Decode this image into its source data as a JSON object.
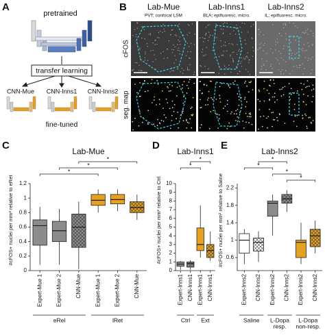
{
  "panels": {
    "A": {
      "letter": "A",
      "top_label": "pretrained",
      "middle_label": "transfer learning",
      "models": [
        "CNN-Mue",
        "CNN-Inns1",
        "CNN-Inns2"
      ],
      "bottom_label": "fine-tuned"
    },
    "B": {
      "letter": "B",
      "columns": [
        {
          "title": "Lab-Mue",
          "subtitle": "PVT; confocal LSM"
        },
        {
          "title": "Lab-Inns1",
          "subtitle": "BLA; epifluoresc. micro."
        },
        {
          "title": "Lab-Inns2",
          "subtitle": "IL; epifluoresc. micro."
        }
      ],
      "rows": [
        "cFOS",
        "seg. map"
      ]
    }
  },
  "chart_data": [
    {
      "type": "box",
      "letter": "C",
      "title": "Lab-Mue",
      "y_label": "#cFOS+ nuclei per mm² relative to eRet",
      "ylim": [
        0,
        1.2
      ],
      "yticks": [
        0,
        0.2,
        0.4,
        0.6,
        0.8,
        1.0,
        1.2
      ],
      "categories": [
        "Expert-Mue 1",
        "Expert-Mue 2",
        "CNN-Mue",
        "Expert-Mue 1",
        "Expert-Mue 2",
        "CNN-Mue"
      ],
      "colors": [
        "#8c8c8c",
        "#8c8c8c",
        "#8c8c8c",
        "#e6a11f",
        "#e6a11f",
        "#e6a11f"
      ],
      "hatch": [
        false,
        false,
        true,
        false,
        false,
        true
      ],
      "boxes": [
        {
          "min": 0.08,
          "q1": 0.35,
          "median": 0.62,
          "q3": 0.7,
          "max": 0.88
        },
        {
          "min": 0.08,
          "q1": 0.4,
          "median": 0.55,
          "q3": 0.68,
          "max": 0.85
        },
        {
          "min": 0.02,
          "q1": 0.32,
          "median": 0.6,
          "q3": 0.78,
          "max": 0.95
        },
        {
          "min": 0.8,
          "q1": 0.9,
          "median": 0.97,
          "q3": 1.05,
          "max": 1.12
        },
        {
          "min": 0.82,
          "q1": 0.92,
          "median": 0.98,
          "q3": 1.05,
          "max": 1.12
        },
        {
          "min": 0.7,
          "q1": 0.8,
          "median": 0.87,
          "q3": 0.95,
          "max": 1.05
        }
      ],
      "groups": [
        [
          "eRel"
        ],
        [
          "lRet"
        ]
      ],
      "significance": [
        {
          "between": [
            2,
            5
          ],
          "label": "*"
        },
        {
          "between": [
            1,
            4
          ],
          "label": "*"
        },
        {
          "between": [
            0,
            3
          ],
          "label": "*"
        }
      ]
    },
    {
      "type": "box",
      "letter": "D",
      "title": "Lab-Inns1",
      "y_label": "#cFOS+ nuclei per mm² relative to Ctrl",
      "ylim": [
        0,
        10
      ],
      "yticks": [
        0,
        1,
        2,
        3,
        4,
        5,
        6,
        7,
        8,
        9,
        10
      ],
      "categories": [
        "Expert-Inns1",
        "CNN-Inns1",
        "Expert-Inns1",
        "CNN-Inns1"
      ],
      "colors": [
        "#8c8c8c",
        "#8c8c8c",
        "#e6a11f",
        "#e6a11f"
      ],
      "hatch": [
        false,
        true,
        false,
        true
      ],
      "boxes": [
        {
          "min": 0.1,
          "q1": 0.5,
          "median": 0.75,
          "q3": 1.0,
          "max": 1.1
        },
        {
          "min": 0.1,
          "q1": 0.4,
          "median": 0.8,
          "q3": 1.0,
          "max": 1.2
        },
        {
          "min": 1.5,
          "q1": 2.3,
          "median": 3.0,
          "q3": 4.9,
          "max": 7.5
        },
        {
          "min": 1.1,
          "q1": 1.5,
          "median": 2.3,
          "q3": 3.0,
          "max": 4.5
        }
      ],
      "groups": [
        [
          "Ctrl"
        ],
        [
          "Ext"
        ]
      ],
      "significance": [
        {
          "between": [
            1,
            3
          ],
          "label": "*"
        },
        {
          "between": [
            0,
            2
          ],
          "label": "*"
        }
      ]
    },
    {
      "type": "box",
      "letter": "E",
      "title": "Lab-Inns2",
      "y_label": "#cFOS+ nuclei per mm² relative to Saline",
      "ylim": [
        0.3,
        2.3
      ],
      "yticks": [
        0.6,
        1.0,
        1.4,
        1.8,
        2.2
      ],
      "categories": [
        "Expert-Inns2",
        "CNN-Inns2",
        "Expert-Inns2",
        "CNN-Inns2",
        "Expert-Inns2",
        "CNN-Inns2"
      ],
      "colors": [
        "#ffffff",
        "#ffffff",
        "#8c8c8c",
        "#8c8c8c",
        "#e6a11f",
        "#e6a11f"
      ],
      "hatch": [
        false,
        true,
        false,
        true,
        false,
        true
      ],
      "boxes": [
        {
          "min": 0.45,
          "q1": 0.7,
          "median": 1.0,
          "q3": 1.15,
          "max": 1.25
        },
        {
          "min": 0.5,
          "q1": 0.75,
          "median": 0.95,
          "q3": 1.05,
          "max": 1.2
        },
        {
          "min": 1.1,
          "q1": 1.55,
          "median": 1.85,
          "q3": 1.9,
          "max": 2.05
        },
        {
          "min": 1.65,
          "q1": 1.85,
          "median": 1.95,
          "q3": 2.05,
          "max": 2.15
        },
        {
          "min": 0.45,
          "q1": 0.6,
          "median": 0.95,
          "q3": 1.0,
          "max": 1.4
        },
        {
          "min": 0.7,
          "q1": 0.85,
          "median": 1.1,
          "q3": 1.25,
          "max": 1.45
        }
      ],
      "groups": [
        [
          "Saline"
        ],
        [
          "L-Dopa",
          "resp."
        ],
        [
          "L-Dopa",
          "non-resp."
        ]
      ],
      "significance": [
        {
          "between": [
            1,
            3
          ],
          "label": "*"
        },
        {
          "between": [
            0,
            2
          ],
          "label": "*"
        },
        {
          "between": [
            2,
            4
          ],
          "label": "*"
        },
        {
          "between": [
            3,
            5
          ],
          "label": "*"
        }
      ]
    }
  ]
}
